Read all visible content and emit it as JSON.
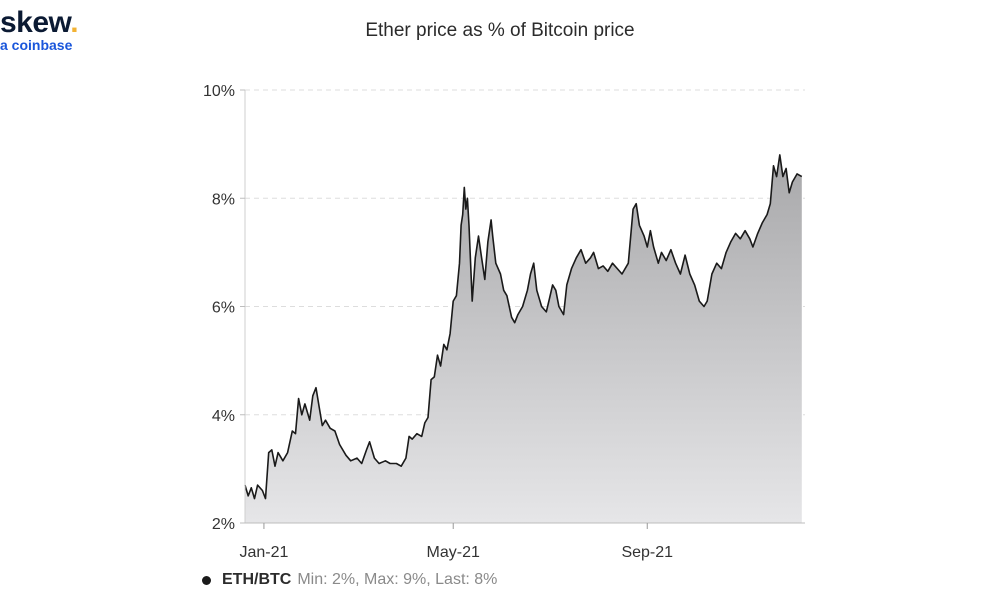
{
  "logo": {
    "text": "skew",
    "dot": ".",
    "sub": "a coinbase"
  },
  "title": "Ether price as % of Bitcoin price",
  "legend": {
    "name": "ETH/BTC",
    "stats": "Min: 2%, Max: 9%, Last: 8%",
    "position": "bottom-left"
  },
  "colors": {
    "line": "#1a1a1a",
    "fill_top": "#a8a8aa",
    "fill_bottom": "#e6e6e8",
    "logo_dot": "#f2b233",
    "logo_sub": "#1a56db"
  },
  "chart_data": {
    "type": "area",
    "title": "Ether price as % of Bitcoin price",
    "xlabel": "",
    "ylabel": "",
    "ylim": [
      2,
      10
    ],
    "y_unit": "%",
    "yticks": [
      {
        "value": 2,
        "label": "2%"
      },
      {
        "value": 4,
        "label": "4%"
      },
      {
        "value": 6,
        "label": "6%"
      },
      {
        "value": 8,
        "label": "8%"
      },
      {
        "value": 10,
        "label": "10%"
      }
    ],
    "xlim": [
      "2020-12-20",
      "2021-12-10"
    ],
    "xticks": [
      {
        "value": "2021-01-01",
        "label": "Jan-21"
      },
      {
        "value": "2021-05-01",
        "label": "May-21"
      },
      {
        "value": "2021-09-01",
        "label": "Sep-21"
      }
    ],
    "grid": {
      "horizontal": true,
      "vertical": false
    },
    "series": [
      {
        "name": "ETH/BTC",
        "points": [
          [
            "2020-12-20",
            2.7
          ],
          [
            "2020-12-22",
            2.5
          ],
          [
            "2020-12-24",
            2.65
          ],
          [
            "2020-12-26",
            2.45
          ],
          [
            "2020-12-28",
            2.7
          ],
          [
            "2020-12-31",
            2.6
          ],
          [
            "2021-01-02",
            2.45
          ],
          [
            "2021-01-04",
            3.3
          ],
          [
            "2021-01-06",
            3.35
          ],
          [
            "2021-01-08",
            3.05
          ],
          [
            "2021-01-10",
            3.3
          ],
          [
            "2021-01-13",
            3.15
          ],
          [
            "2021-01-16",
            3.3
          ],
          [
            "2021-01-19",
            3.7
          ],
          [
            "2021-01-21",
            3.65
          ],
          [
            "2021-01-23",
            4.3
          ],
          [
            "2021-01-25",
            4.0
          ],
          [
            "2021-01-27",
            4.2
          ],
          [
            "2021-01-30",
            3.9
          ],
          [
            "2021-02-01",
            4.35
          ],
          [
            "2021-02-03",
            4.5
          ],
          [
            "2021-02-05",
            4.15
          ],
          [
            "2021-02-07",
            3.8
          ],
          [
            "2021-02-09",
            3.9
          ],
          [
            "2021-02-12",
            3.75
          ],
          [
            "2021-02-15",
            3.7
          ],
          [
            "2021-02-18",
            3.45
          ],
          [
            "2021-02-22",
            3.25
          ],
          [
            "2021-02-25",
            3.15
          ],
          [
            "2021-03-01",
            3.2
          ],
          [
            "2021-03-04",
            3.1
          ],
          [
            "2021-03-07",
            3.35
          ],
          [
            "2021-03-09",
            3.5
          ],
          [
            "2021-03-12",
            3.2
          ],
          [
            "2021-03-15",
            3.1
          ],
          [
            "2021-03-19",
            3.15
          ],
          [
            "2021-03-22",
            3.1
          ],
          [
            "2021-03-26",
            3.1
          ],
          [
            "2021-03-29",
            3.05
          ],
          [
            "2021-04-01",
            3.2
          ],
          [
            "2021-04-03",
            3.6
          ],
          [
            "2021-04-05",
            3.55
          ],
          [
            "2021-04-08",
            3.65
          ],
          [
            "2021-04-11",
            3.6
          ],
          [
            "2021-04-13",
            3.85
          ],
          [
            "2021-04-15",
            3.95
          ],
          [
            "2021-04-17",
            4.65
          ],
          [
            "2021-04-19",
            4.7
          ],
          [
            "2021-04-21",
            5.1
          ],
          [
            "2021-04-23",
            4.9
          ],
          [
            "2021-04-25",
            5.3
          ],
          [
            "2021-04-27",
            5.2
          ],
          [
            "2021-04-29",
            5.5
          ],
          [
            "2021-05-01",
            6.1
          ],
          [
            "2021-05-03",
            6.2
          ],
          [
            "2021-05-05",
            6.8
          ],
          [
            "2021-05-06",
            7.5
          ],
          [
            "2021-05-07",
            7.7
          ],
          [
            "2021-05-08",
            8.2
          ],
          [
            "2021-05-09",
            7.8
          ],
          [
            "2021-05-10",
            8.0
          ],
          [
            "2021-05-11",
            7.5
          ],
          [
            "2021-05-12",
            6.8
          ],
          [
            "2021-05-13",
            6.1
          ],
          [
            "2021-05-15",
            6.9
          ],
          [
            "2021-05-17",
            7.3
          ],
          [
            "2021-05-19",
            6.9
          ],
          [
            "2021-05-21",
            6.5
          ],
          [
            "2021-05-23",
            7.2
          ],
          [
            "2021-05-25",
            7.6
          ],
          [
            "2021-05-26",
            7.3
          ],
          [
            "2021-05-28",
            6.8
          ],
          [
            "2021-05-31",
            6.6
          ],
          [
            "2021-06-02",
            6.3
          ],
          [
            "2021-06-04",
            6.2
          ],
          [
            "2021-06-07",
            5.8
          ],
          [
            "2021-06-09",
            5.7
          ],
          [
            "2021-06-11",
            5.85
          ],
          [
            "2021-06-14",
            6.0
          ],
          [
            "2021-06-17",
            6.3
          ],
          [
            "2021-06-19",
            6.6
          ],
          [
            "2021-06-21",
            6.8
          ],
          [
            "2021-06-23",
            6.3
          ],
          [
            "2021-06-26",
            6.0
          ],
          [
            "2021-06-29",
            5.9
          ],
          [
            "2021-07-01",
            6.15
          ],
          [
            "2021-07-03",
            6.4
          ],
          [
            "2021-07-05",
            6.3
          ],
          [
            "2021-07-07",
            6.0
          ],
          [
            "2021-07-10",
            5.85
          ],
          [
            "2021-07-12",
            6.4
          ],
          [
            "2021-07-15",
            6.7
          ],
          [
            "2021-07-18",
            6.9
          ],
          [
            "2021-07-21",
            7.05
          ],
          [
            "2021-07-24",
            6.8
          ],
          [
            "2021-07-27",
            6.9
          ],
          [
            "2021-07-29",
            7.0
          ],
          [
            "2021-08-01",
            6.7
          ],
          [
            "2021-08-04",
            6.75
          ],
          [
            "2021-08-07",
            6.65
          ],
          [
            "2021-08-10",
            6.8
          ],
          [
            "2021-08-13",
            6.7
          ],
          [
            "2021-08-16",
            6.6
          ],
          [
            "2021-08-20",
            6.8
          ],
          [
            "2021-08-23",
            7.8
          ],
          [
            "2021-08-25",
            7.9
          ],
          [
            "2021-08-27",
            7.5
          ],
          [
            "2021-08-30",
            7.3
          ],
          [
            "2021-09-01",
            7.1
          ],
          [
            "2021-09-03",
            7.4
          ],
          [
            "2021-09-05",
            7.1
          ],
          [
            "2021-09-08",
            6.8
          ],
          [
            "2021-09-10",
            7.0
          ],
          [
            "2021-09-13",
            6.85
          ],
          [
            "2021-09-16",
            7.05
          ],
          [
            "2021-09-19",
            6.8
          ],
          [
            "2021-09-22",
            6.6
          ],
          [
            "2021-09-25",
            6.95
          ],
          [
            "2021-09-28",
            6.6
          ],
          [
            "2021-10-01",
            6.4
          ],
          [
            "2021-10-04",
            6.1
          ],
          [
            "2021-10-07",
            6.0
          ],
          [
            "2021-10-09",
            6.1
          ],
          [
            "2021-10-12",
            6.6
          ],
          [
            "2021-10-15",
            6.8
          ],
          [
            "2021-10-18",
            6.7
          ],
          [
            "2021-10-21",
            7.0
          ],
          [
            "2021-10-24",
            7.2
          ],
          [
            "2021-10-27",
            7.35
          ],
          [
            "2021-10-30",
            7.25
          ],
          [
            "2021-11-02",
            7.4
          ],
          [
            "2021-11-05",
            7.25
          ],
          [
            "2021-11-07",
            7.1
          ],
          [
            "2021-11-10",
            7.35
          ],
          [
            "2021-11-13",
            7.55
          ],
          [
            "2021-11-16",
            7.7
          ],
          [
            "2021-11-18",
            7.9
          ],
          [
            "2021-11-20",
            8.6
          ],
          [
            "2021-11-22",
            8.4
          ],
          [
            "2021-11-24",
            8.8
          ],
          [
            "2021-11-26",
            8.4
          ],
          [
            "2021-11-28",
            8.55
          ],
          [
            "2021-11-30",
            8.1
          ],
          [
            "2021-12-02",
            8.3
          ],
          [
            "2021-12-05",
            8.45
          ],
          [
            "2021-12-08",
            8.4
          ]
        ]
      }
    ]
  }
}
